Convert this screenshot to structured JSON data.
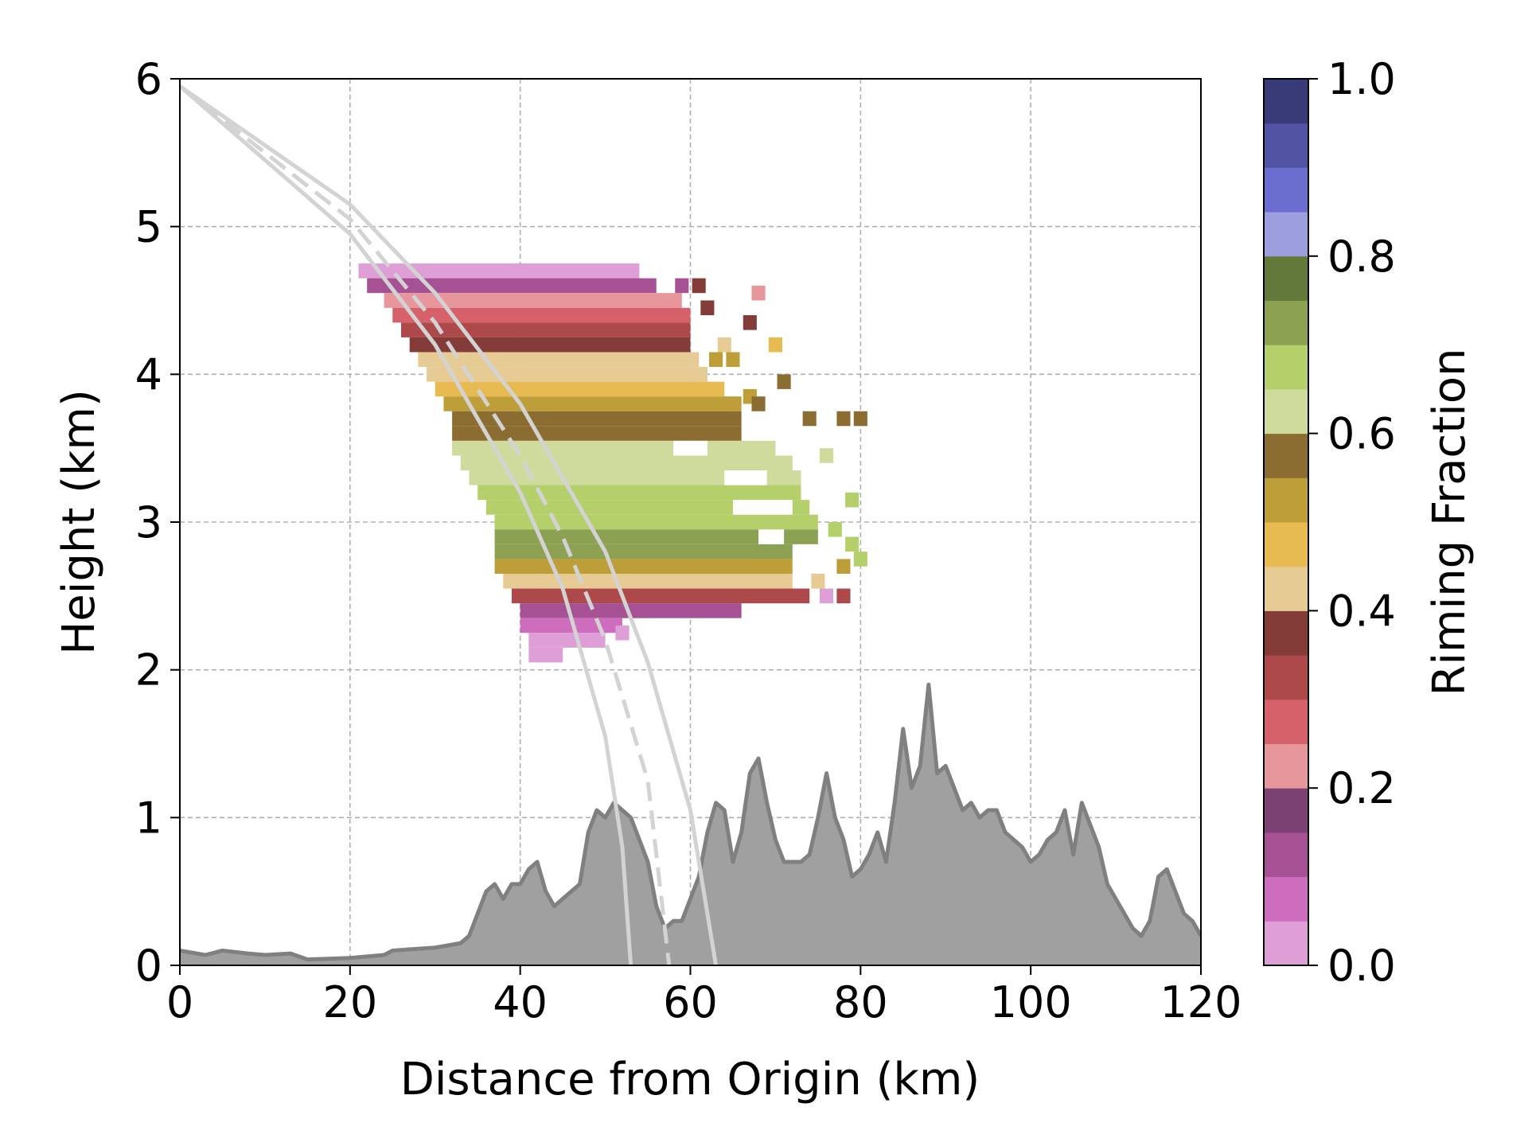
{
  "chart_data": [
    {
      "type": "heatmap",
      "title": "",
      "xlabel": "Distance from Origin (km)",
      "ylabel": "Height (km)",
      "xlim": [
        0,
        120
      ],
      "ylim": [
        0,
        6
      ],
      "xticks": [
        "0",
        "20",
        "40",
        "60",
        "80",
        "100",
        "120"
      ],
      "yticks": [
        "0",
        "1",
        "2",
        "3",
        "4",
        "5",
        "6"
      ],
      "grid": true,
      "cell_size": {
        "dx_km": 1.6,
        "dz_km": 0.1
      },
      "value_label": "Riming Fraction",
      "riming_layers": [
        {
          "z": 4.7,
          "x_start": 21,
          "x_end": 54,
          "value": 0.02
        },
        {
          "z": 4.6,
          "x_start": 22,
          "x_end": 56,
          "value": 0.12
        },
        {
          "z": 4.5,
          "x_start": 24,
          "x_end": 59,
          "value": 0.22
        },
        {
          "z": 4.4,
          "x_start": 25,
          "x_end": 60,
          "value": 0.28
        },
        {
          "z": 4.3,
          "x_start": 26,
          "x_end": 60,
          "value": 0.33
        },
        {
          "z": 4.2,
          "x_start": 27,
          "x_end": 60,
          "value": 0.37
        },
        {
          "z": 4.1,
          "x_start": 28,
          "x_end": 61,
          "value": 0.42
        },
        {
          "z": 4.0,
          "x_start": 29,
          "x_end": 62,
          "value": 0.42
        },
        {
          "z": 3.9,
          "x_start": 30,
          "x_end": 64,
          "value": 0.47
        },
        {
          "z": 3.8,
          "x_start": 31,
          "x_end": 66,
          "value": 0.52
        },
        {
          "z": 3.7,
          "x_start": 32,
          "x_end": 66,
          "value": 0.57
        },
        {
          "z": 3.6,
          "x_start": 32,
          "x_end": 66,
          "value": 0.57
        },
        {
          "z": 3.5,
          "x_start": 32,
          "x_end": 70,
          "value": 0.62
        },
        {
          "z": 3.4,
          "x_start": 33,
          "x_end": 72,
          "value": 0.62
        },
        {
          "z": 3.3,
          "x_start": 34,
          "x_end": 73,
          "value": 0.62
        },
        {
          "z": 3.2,
          "x_start": 35,
          "x_end": 73,
          "value": 0.67
        },
        {
          "z": 3.1,
          "x_start": 36,
          "x_end": 74,
          "value": 0.67
        },
        {
          "z": 3.0,
          "x_start": 37,
          "x_end": 75,
          "value": 0.67
        },
        {
          "z": 2.9,
          "x_start": 37,
          "x_end": 75,
          "value": 0.72
        },
        {
          "z": 2.8,
          "x_start": 37,
          "x_end": 72,
          "value": 0.72
        },
        {
          "z": 2.7,
          "x_start": 37,
          "x_end": 72,
          "value": 0.52
        },
        {
          "z": 2.6,
          "x_start": 38,
          "x_end": 72,
          "value": 0.42
        },
        {
          "z": 2.5,
          "x_start": 39,
          "x_end": 74,
          "value": 0.33
        },
        {
          "z": 2.4,
          "x_start": 40,
          "x_end": 66,
          "value": 0.12
        },
        {
          "z": 2.3,
          "x_start": 40,
          "x_end": 52,
          "value": 0.07
        },
        {
          "z": 2.2,
          "x_start": 41,
          "x_end": 50,
          "value": 0.02
        },
        {
          "z": 2.1,
          "x_start": 41,
          "x_end": 45,
          "value": 0.02
        }
      ],
      "isolated_cells": [
        {
          "x": 59,
          "z": 4.6,
          "value": 0.12
        },
        {
          "x": 61,
          "z": 4.6,
          "value": 0.37
        },
        {
          "x": 68,
          "z": 4.55,
          "value": 0.22
        },
        {
          "x": 62,
          "z": 4.45,
          "value": 0.37
        },
        {
          "x": 67,
          "z": 4.35,
          "value": 0.37
        },
        {
          "x": 64,
          "z": 4.2,
          "value": 0.42
        },
        {
          "x": 70,
          "z": 4.2,
          "value": 0.47
        },
        {
          "x": 63,
          "z": 4.1,
          "value": 0.52
        },
        {
          "x": 65,
          "z": 4.1,
          "value": 0.52
        },
        {
          "x": 71,
          "z": 3.95,
          "value": 0.57
        },
        {
          "x": 67,
          "z": 3.85,
          "value": 0.52
        },
        {
          "x": 68,
          "z": 3.8,
          "value": 0.57
        },
        {
          "x": 74,
          "z": 3.7,
          "value": 0.57
        },
        {
          "x": 78,
          "z": 3.7,
          "value": 0.57
        },
        {
          "x": 80,
          "z": 3.7,
          "value": 0.57
        },
        {
          "x": 76,
          "z": 3.45,
          "value": 0.62
        },
        {
          "x": 79,
          "z": 3.15,
          "value": 0.67
        },
        {
          "x": 77,
          "z": 2.95,
          "value": 0.67
        },
        {
          "x": 79,
          "z": 2.85,
          "value": 0.67
        },
        {
          "x": 80,
          "z": 2.75,
          "value": 0.67
        },
        {
          "x": 78,
          "z": 2.7,
          "value": 0.52
        },
        {
          "x": 75,
          "z": 2.6,
          "value": 0.42
        },
        {
          "x": 76,
          "z": 2.5,
          "value": 0.02
        },
        {
          "x": 78,
          "z": 2.5,
          "value": 0.33
        },
        {
          "x": 52,
          "z": 2.25,
          "value": 0.02
        }
      ],
      "data_gaps": [
        {
          "x_start": 58,
          "x_end": 62,
          "z": 3.5
        },
        {
          "x_start": 64,
          "x_end": 69,
          "z": 3.3
        },
        {
          "x_start": 65,
          "x_end": 72,
          "z": 3.1
        },
        {
          "x_start": 68,
          "x_end": 71,
          "z": 2.9
        }
      ],
      "beam_paths": {
        "center_dashed": [
          [
            0,
            5.95
          ],
          [
            20,
            5.05
          ],
          [
            30,
            4.35
          ],
          [
            40,
            3.45
          ],
          [
            45,
            2.9
          ],
          [
            50,
            2.2
          ],
          [
            55,
            1.25
          ],
          [
            57.5,
            0
          ]
        ],
        "lower_edge": [
          [
            0,
            5.95
          ],
          [
            20,
            4.95
          ],
          [
            30,
            4.2
          ],
          [
            40,
            3.2
          ],
          [
            45,
            2.55
          ],
          [
            50,
            1.55
          ],
          [
            52,
            0.8
          ],
          [
            53,
            0
          ]
        ],
        "upper_edge": [
          [
            0,
            5.95
          ],
          [
            20,
            5.15
          ],
          [
            30,
            4.55
          ],
          [
            40,
            3.8
          ],
          [
            50,
            2.8
          ],
          [
            55,
            2.05
          ],
          [
            60,
            1.05
          ],
          [
            63,
            0
          ]
        ]
      },
      "terrain": {
        "x": [
          0,
          3,
          5,
          8,
          10,
          13,
          15,
          20,
          24,
          25,
          30,
          33,
          34,
          35,
          36,
          37,
          38,
          39,
          40,
          41,
          42,
          43,
          44,
          45,
          46,
          47,
          48,
          49,
          50,
          51,
          52,
          53,
          54,
          55,
          56,
          57,
          58,
          59,
          60,
          61,
          62,
          63,
          64,
          65,
          66,
          67,
          68,
          69,
          70,
          71,
          72,
          73,
          74,
          75,
          76,
          77,
          78,
          79,
          80,
          81,
          82,
          83,
          84,
          85,
          86,
          87,
          88,
          89,
          90,
          91,
          92,
          93,
          94,
          95,
          96,
          97,
          98,
          99,
          100,
          101,
          102,
          103,
          104,
          105,
          106,
          107,
          108,
          109,
          110,
          111,
          112,
          113,
          114,
          115,
          116,
          117,
          118,
          119,
          120
        ],
        "y": [
          0.1,
          0.07,
          0.1,
          0.08,
          0.07,
          0.08,
          0.04,
          0.05,
          0.07,
          0.1,
          0.12,
          0.15,
          0.2,
          0.35,
          0.5,
          0.55,
          0.45,
          0.55,
          0.55,
          0.65,
          0.7,
          0.5,
          0.4,
          0.45,
          0.5,
          0.55,
          0.9,
          1.05,
          1.0,
          1.1,
          1.05,
          1.0,
          0.85,
          0.7,
          0.4,
          0.25,
          0.3,
          0.3,
          0.45,
          0.6,
          0.9,
          1.1,
          1.05,
          0.7,
          0.9,
          1.3,
          1.4,
          1.1,
          0.85,
          0.7,
          0.7,
          0.7,
          0.75,
          1.0,
          1.3,
          1.0,
          0.85,
          0.6,
          0.65,
          0.75,
          0.9,
          0.7,
          1.1,
          1.6,
          1.2,
          1.35,
          1.9,
          1.3,
          1.35,
          1.2,
          1.05,
          1.1,
          1.0,
          1.05,
          1.05,
          0.9,
          0.85,
          0.8,
          0.7,
          0.75,
          0.85,
          0.9,
          1.05,
          0.75,
          1.1,
          0.95,
          0.8,
          0.55,
          0.45,
          0.35,
          0.25,
          0.2,
          0.3,
          0.6,
          0.65,
          0.5,
          0.35,
          0.3,
          0.2
        ]
      },
      "colors": {
        "terrain_fill": "#a0a0a0",
        "terrain_line": "#808080",
        "beam": "#d3d3d3",
        "grid": "#b0b0b0"
      }
    },
    {
      "type": "colorbar",
      "label": "Riming Fraction",
      "range": [
        0.0,
        1.0
      ],
      "ticks": [
        "0.0",
        "0.2",
        "0.4",
        "0.6",
        "0.8",
        "1.0"
      ],
      "colors": [
        "#de9ed6",
        "#ce6dbd",
        "#a55194",
        "#7b4173",
        "#e7969c",
        "#d6616b",
        "#ad494a",
        "#843c39",
        "#e7cb94",
        "#e7ba52",
        "#bd9e39",
        "#8c6d31",
        "#cedb9c",
        "#b5cf6b",
        "#8ca252",
        "#637939",
        "#9c9ede",
        "#6b6ecf",
        "#5254a3",
        "#393b79"
      ]
    }
  ]
}
